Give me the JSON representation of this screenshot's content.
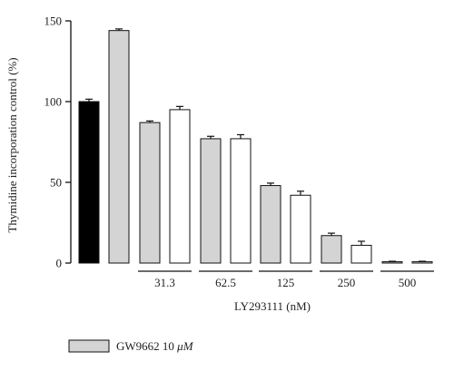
{
  "chart_data": {
    "type": "bar",
    "ylabel": "Thymidine incorporation control (%)",
    "xlabel": "LY293111 (nM)",
    "ylim": [
      0,
      150
    ],
    "yticks": [
      0,
      50,
      100,
      150
    ],
    "group_labels": [
      "31.3",
      "62.5",
      "125",
      "250",
      "500"
    ],
    "legend": {
      "label_prefix": "GW9662 10 ",
      "label_unit": "μM",
      "placement": "bottom-left"
    },
    "colors": {
      "black": "#000000",
      "gray": "#d4d4d4",
      "white": "#ffffff",
      "outline": "#111111"
    },
    "bars": [
      {
        "value": 100,
        "error": 1.5,
        "fill": "black"
      },
      {
        "value": 144,
        "error": 1.0,
        "fill": "gray"
      },
      {
        "value": 87,
        "error": 1.0,
        "fill": "gray",
        "group": 0
      },
      {
        "value": 95,
        "error": 2.0,
        "fill": "white",
        "group": 0
      },
      {
        "value": 77,
        "error": 1.5,
        "fill": "gray",
        "group": 1
      },
      {
        "value": 77,
        "error": 2.5,
        "fill": "white",
        "group": 1
      },
      {
        "value": 48,
        "error": 1.5,
        "fill": "gray",
        "group": 2
      },
      {
        "value": 42,
        "error": 2.5,
        "fill": "white",
        "group": 2
      },
      {
        "value": 17,
        "error": 1.5,
        "fill": "gray",
        "group": 3
      },
      {
        "value": 11,
        "error": 2.5,
        "fill": "white",
        "group": 3
      },
      {
        "value": 0.8,
        "error": 0.3,
        "fill": "gray",
        "group": 4
      },
      {
        "value": 0.8,
        "error": 0.3,
        "fill": "white",
        "group": 4
      }
    ]
  }
}
